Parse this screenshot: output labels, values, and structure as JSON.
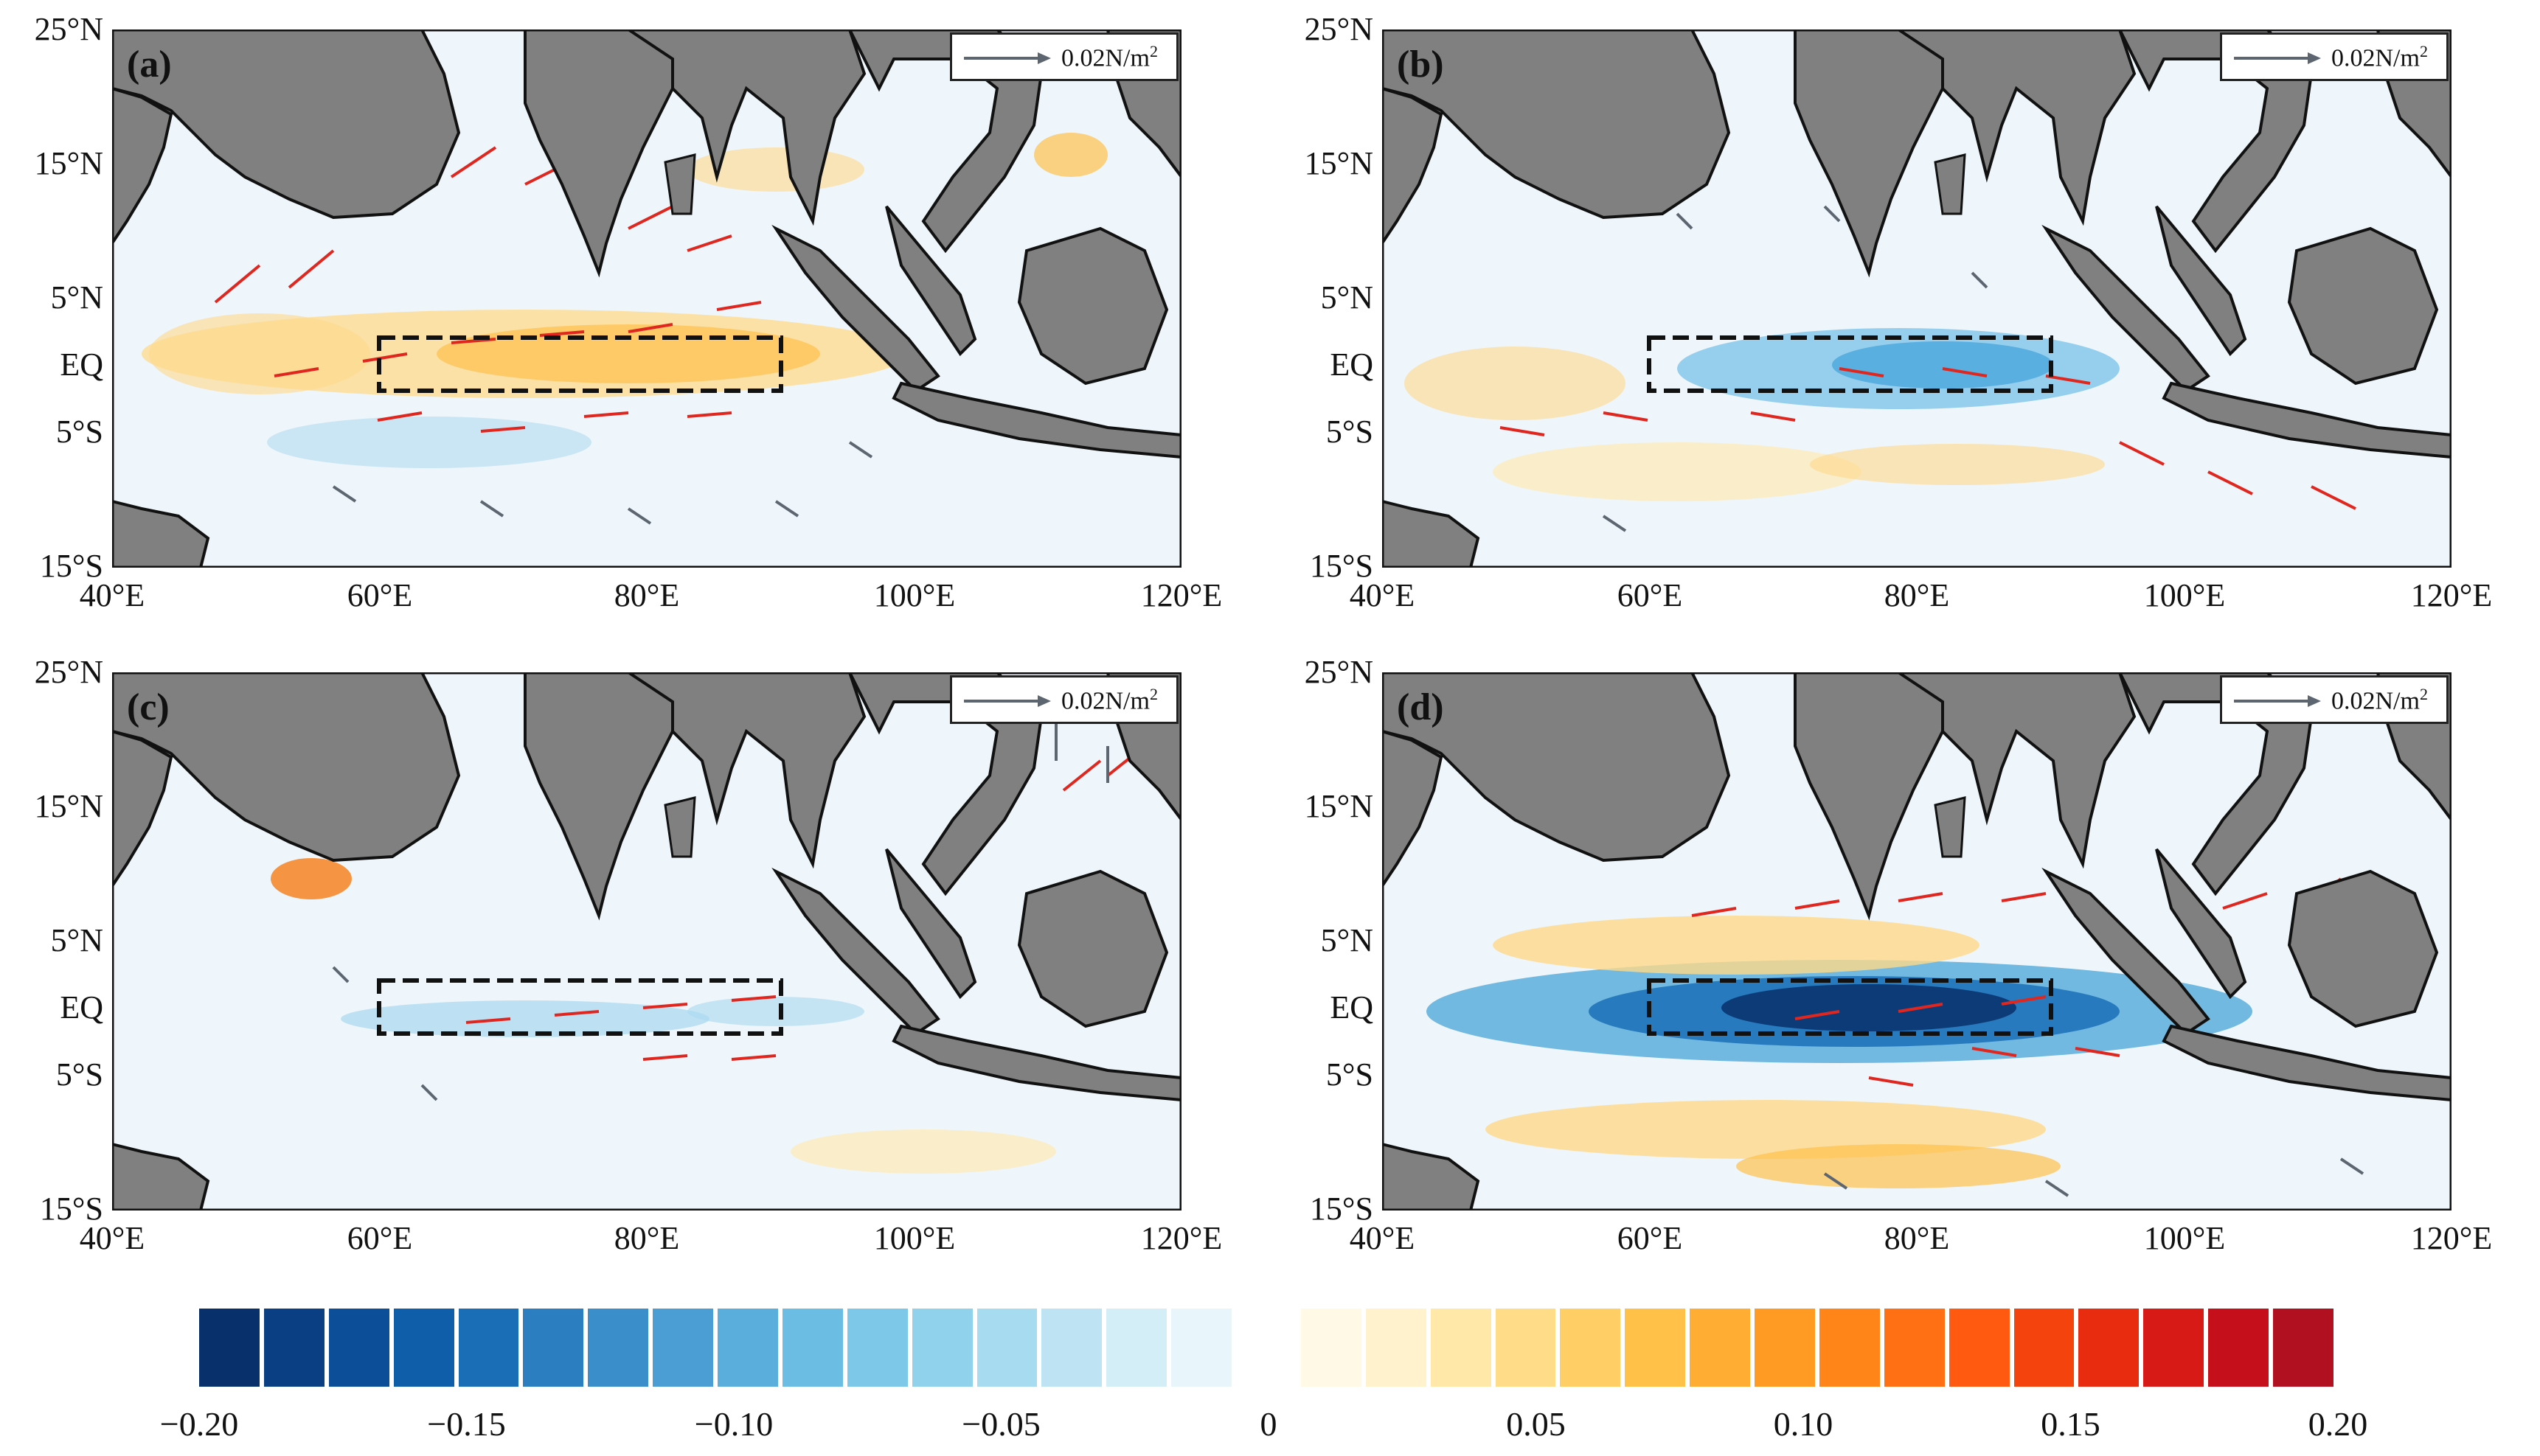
{
  "figure": {
    "panels": [
      {
        "label": "(a)"
      },
      {
        "label": "(b)"
      },
      {
        "label": "(c)"
      },
      {
        "label": "(d)"
      }
    ],
    "legend": {
      "text": "0.02N/m",
      "exponent": "2"
    },
    "axes": {
      "latitude_labels": [
        "25°N",
        "15°N",
        "5°N",
        "EQ",
        "5°S",
        "15°S"
      ],
      "longitude_labels": [
        "40°E",
        "60°E",
        "80°E",
        "100°E",
        "120°E"
      ],
      "lat_range": [
        -15,
        25
      ],
      "lon_range": [
        40,
        120
      ]
    },
    "box_region": {
      "lon": [
        60,
        90
      ],
      "lat": [
        -2,
        2
      ]
    },
    "colorbar": {
      "min": -0.2,
      "max": 0.2,
      "labels": [
        "−0.20",
        "−0.15",
        "−0.10",
        "−0.05",
        "0",
        "0.05",
        "0.10",
        "0.15",
        "0.20"
      ],
      "colors": [
        "#08306b",
        "#0b3f83",
        "#0c4f98",
        "#0f5ea9",
        "#1a6eb6",
        "#2b7fc1",
        "#3a8ec9",
        "#4a9ed3",
        "#5aaedb",
        "#6bbde3",
        "#7dc8e8",
        "#90d1ec",
        "#a6dbf0",
        "#bee4f4",
        "#d4eef8",
        "#e8f6fb",
        "#ffffff",
        "#fff9e6",
        "#fff2cc",
        "#ffe8a8",
        "#ffdd88",
        "#ffcf66",
        "#ffc147",
        "#ffae33",
        "#ff9a22",
        "#ff8519",
        "#ff7014",
        "#ff5a10",
        "#f5430e",
        "#e82c10",
        "#d81a17",
        "#c50f1b",
        "#b0101f"
      ]
    }
  }
}
